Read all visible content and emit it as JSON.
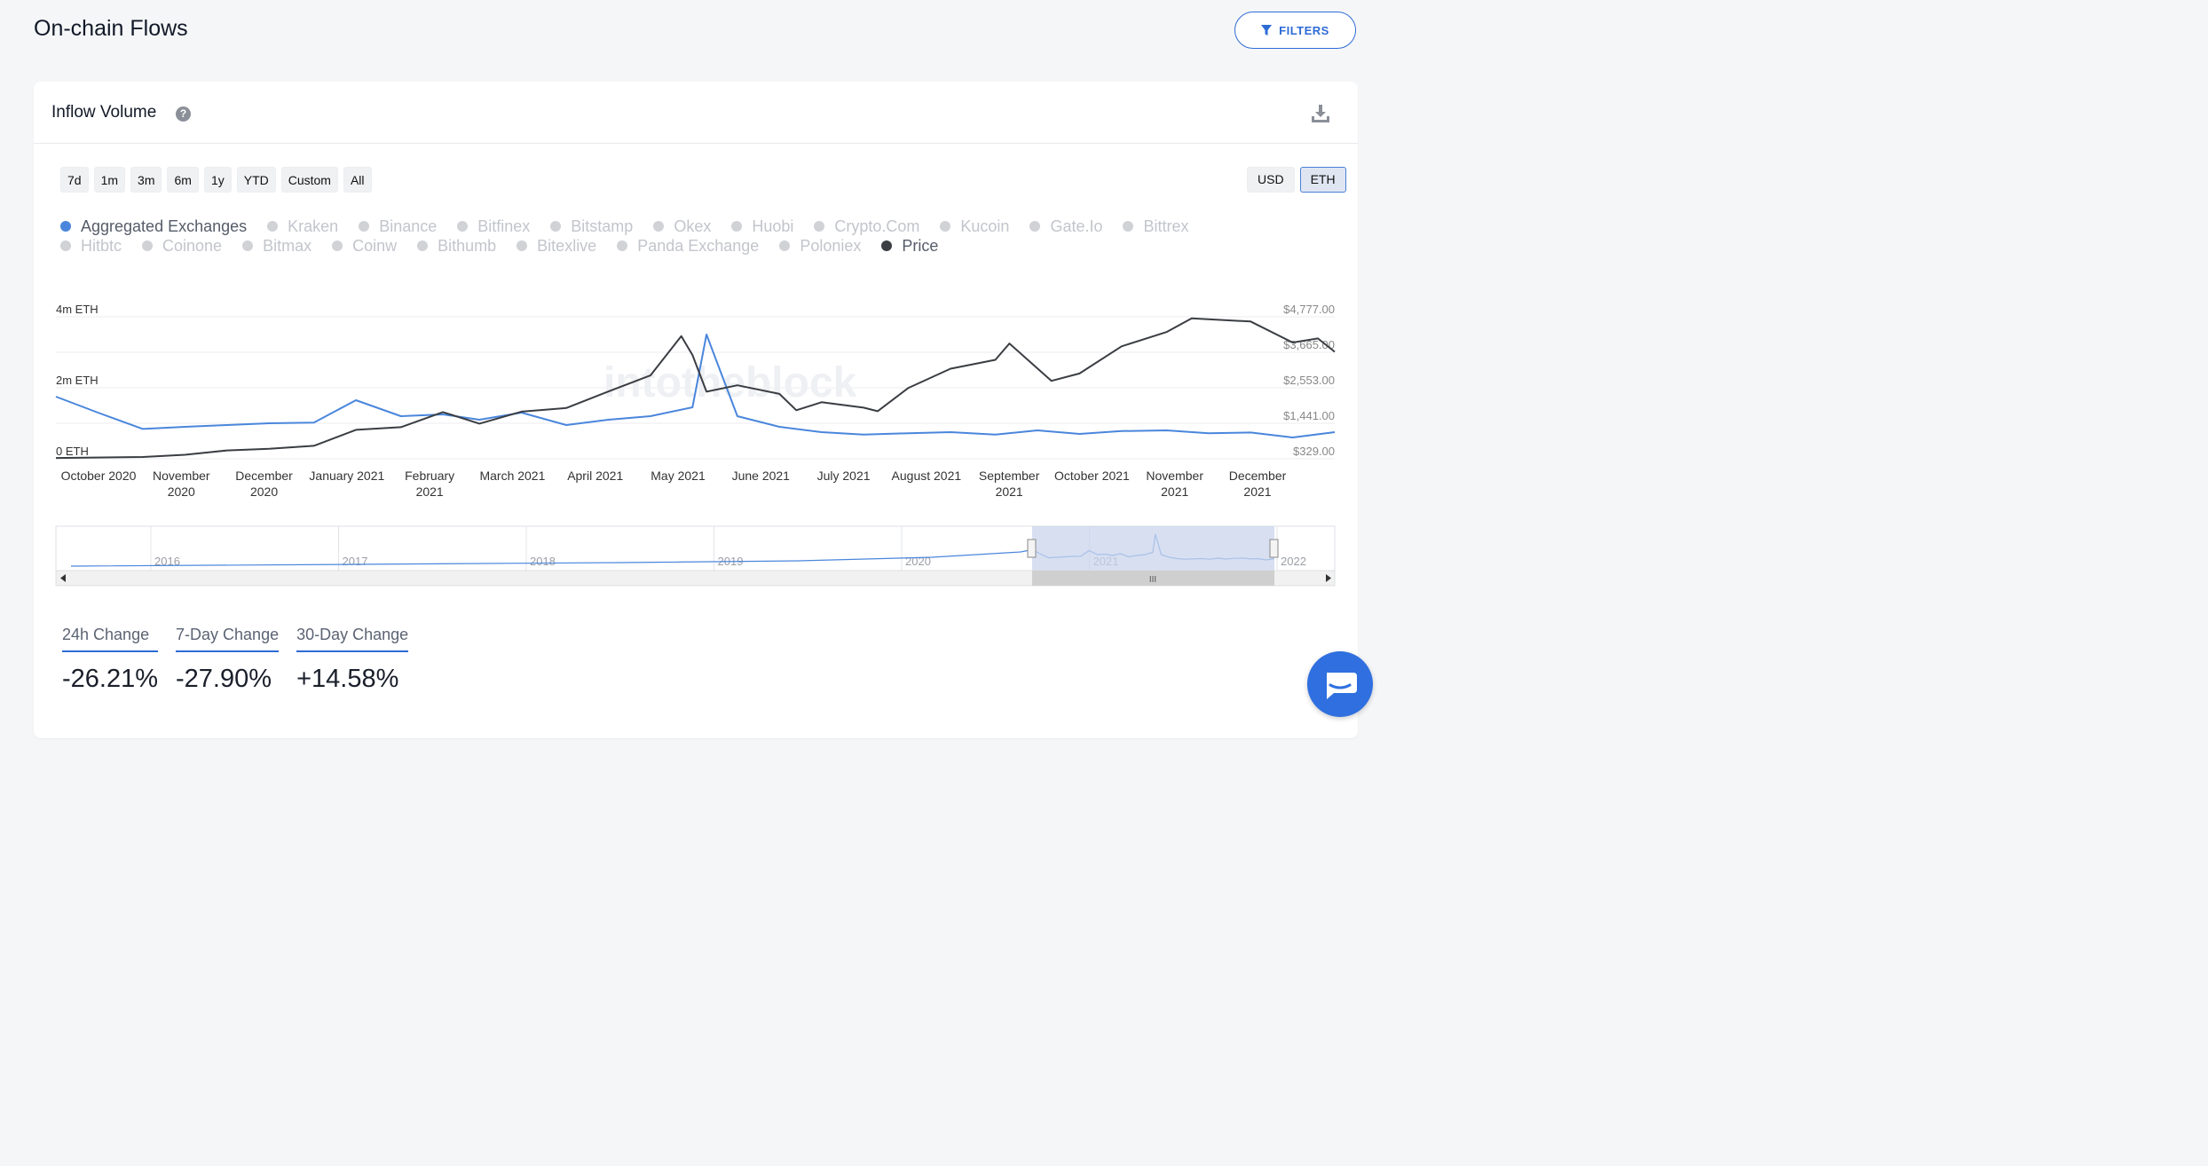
{
  "page": {
    "title": "On-chain Flows",
    "filters_label": "FILTERS"
  },
  "card": {
    "title": "Inflow Volume",
    "help_symbol": "?"
  },
  "ranges": [
    "7d",
    "1m",
    "3m",
    "6m",
    "1y",
    "YTD",
    "Custom",
    "All"
  ],
  "currencies": [
    {
      "label": "USD",
      "active": false
    },
    {
      "label": "ETH",
      "active": true
    }
  ],
  "legend": {
    "row1": [
      {
        "label": "Aggregated Exchanges",
        "state": "blue"
      },
      {
        "label": "Kraken",
        "state": "off"
      },
      {
        "label": "Binance",
        "state": "off"
      },
      {
        "label": "Bitfinex",
        "state": "off"
      },
      {
        "label": "Bitstamp",
        "state": "off"
      },
      {
        "label": "Okex",
        "state": "off"
      },
      {
        "label": "Huobi",
        "state": "off"
      },
      {
        "label": "Crypto.Com",
        "state": "off"
      },
      {
        "label": "Kucoin",
        "state": "off"
      },
      {
        "label": "Gate.Io",
        "state": "off"
      },
      {
        "label": "Bittrex",
        "state": "off"
      }
    ],
    "row2": [
      {
        "label": "Hitbtc",
        "state": "off"
      },
      {
        "label": "Coinone",
        "state": "off"
      },
      {
        "label": "Bitmax",
        "state": "off"
      },
      {
        "label": "Coinw",
        "state": "off"
      },
      {
        "label": "Bithumb",
        "state": "off"
      },
      {
        "label": "Bitexlive",
        "state": "off"
      },
      {
        "label": "Panda Exchange",
        "state": "off"
      },
      {
        "label": "Poloniex",
        "state": "off"
      },
      {
        "label": "Price",
        "state": "dark"
      }
    ]
  },
  "chart": {
    "watermark": "intotheblock",
    "left_axis": [
      "4m ETH",
      "2m ETH",
      "0 ETH"
    ],
    "right_axis": [
      "$4,777.00",
      "$3,665.00",
      "$2,553.00",
      "$1,441.00",
      "$329.00"
    ],
    "x_labels": [
      [
        "October 2020"
      ],
      [
        "November",
        "2020"
      ],
      [
        "December",
        "2020"
      ],
      [
        "January 2021"
      ],
      [
        "February",
        "2021"
      ],
      [
        "March 2021"
      ],
      [
        "April 2021"
      ],
      [
        "May 2021"
      ],
      [
        "June 2021"
      ],
      [
        "July 2021"
      ],
      [
        "August 2021"
      ],
      [
        "September",
        "2021"
      ],
      [
        "October 2021"
      ],
      [
        "November",
        "2021"
      ],
      [
        "December",
        "2021"
      ]
    ],
    "navigator_years": [
      "2016",
      "2017",
      "2018",
      "2019",
      "2020",
      "2021",
      "2022"
    ],
    "scroll_grip": "III",
    "colors": {
      "inflow": "#4a86dc",
      "price": "#3a3d42",
      "navigator_mask": "#c9d4ec"
    }
  },
  "chart_data": {
    "type": "line",
    "xlim": [
      "2020-10-01",
      "2021-12-31"
    ],
    "series": [
      {
        "name": "Aggregated Exchanges",
        "axis": "left",
        "unit": "ETH",
        "ylim": [
          0,
          4000000
        ],
        "points": [
          [
            "2020-10-01",
            1750000
          ],
          [
            "2020-10-16",
            1300000
          ],
          [
            "2020-11-01",
            840000
          ],
          [
            "2020-11-16",
            900000
          ],
          [
            "2020-12-01",
            950000
          ],
          [
            "2020-12-16",
            1000000
          ],
          [
            "2021-01-01",
            1020000
          ],
          [
            "2021-01-16",
            1650000
          ],
          [
            "2021-02-01",
            1200000
          ],
          [
            "2021-02-16",
            1250000
          ],
          [
            "2021-03-01",
            1100000
          ],
          [
            "2021-03-16",
            1300000
          ],
          [
            "2021-04-01",
            950000
          ],
          [
            "2021-04-16",
            1100000
          ],
          [
            "2021-05-01",
            1200000
          ],
          [
            "2021-05-16",
            1450000
          ],
          [
            "2021-05-21",
            3500000
          ],
          [
            "2021-06-01",
            1200000
          ],
          [
            "2021-06-16",
            900000
          ],
          [
            "2021-07-01",
            750000
          ],
          [
            "2021-07-16",
            680000
          ],
          [
            "2021-08-01",
            720000
          ],
          [
            "2021-08-16",
            750000
          ],
          [
            "2021-09-01",
            680000
          ],
          [
            "2021-09-16",
            800000
          ],
          [
            "2021-10-01",
            700000
          ],
          [
            "2021-10-16",
            780000
          ],
          [
            "2021-11-01",
            800000
          ],
          [
            "2021-11-16",
            720000
          ],
          [
            "2021-12-01",
            740000
          ],
          [
            "2021-12-16",
            600000
          ],
          [
            "2021-12-31",
            750000
          ]
        ]
      },
      {
        "name": "Price",
        "axis": "right",
        "unit": "USD",
        "ylim": [
          329,
          4777
        ],
        "points": [
          [
            "2020-10-01",
            355
          ],
          [
            "2020-11-01",
            385
          ],
          [
            "2020-11-16",
            455
          ],
          [
            "2020-12-01",
            590
          ],
          [
            "2020-12-16",
            640
          ],
          [
            "2021-01-01",
            735
          ],
          [
            "2021-01-16",
            1235
          ],
          [
            "2021-02-01",
            1320
          ],
          [
            "2021-02-16",
            1790
          ],
          [
            "2021-03-01",
            1430
          ],
          [
            "2021-03-16",
            1805
          ],
          [
            "2021-04-01",
            1920
          ],
          [
            "2021-04-16",
            2435
          ],
          [
            "2021-05-01",
            2940
          ],
          [
            "2021-05-12",
            4170
          ],
          [
            "2021-05-16",
            3580
          ],
          [
            "2021-05-21",
            2430
          ],
          [
            "2021-06-01",
            2630
          ],
          [
            "2021-06-16",
            2360
          ],
          [
            "2021-06-22",
            1850
          ],
          [
            "2021-07-01",
            2100
          ],
          [
            "2021-07-16",
            1930
          ],
          [
            "2021-07-21",
            1820
          ],
          [
            "2021-08-01",
            2550
          ],
          [
            "2021-08-16",
            3150
          ],
          [
            "2021-09-01",
            3430
          ],
          [
            "2021-09-06",
            3940
          ],
          [
            "2021-09-21",
            2770
          ],
          [
            "2021-10-01",
            3000
          ],
          [
            "2021-10-16",
            3850
          ],
          [
            "2021-11-01",
            4300
          ],
          [
            "2021-11-10",
            4730
          ],
          [
            "2021-12-01",
            4630
          ],
          [
            "2021-12-16",
            3970
          ],
          [
            "2021-12-25",
            4100
          ],
          [
            "2021-12-31",
            3680
          ]
        ]
      }
    ]
  },
  "stats": [
    {
      "label": "24h Change",
      "value": "-26.21%"
    },
    {
      "label": "7-Day Change",
      "value": "-27.90%"
    },
    {
      "label": "30-Day Change",
      "value": "+14.58%"
    }
  ]
}
